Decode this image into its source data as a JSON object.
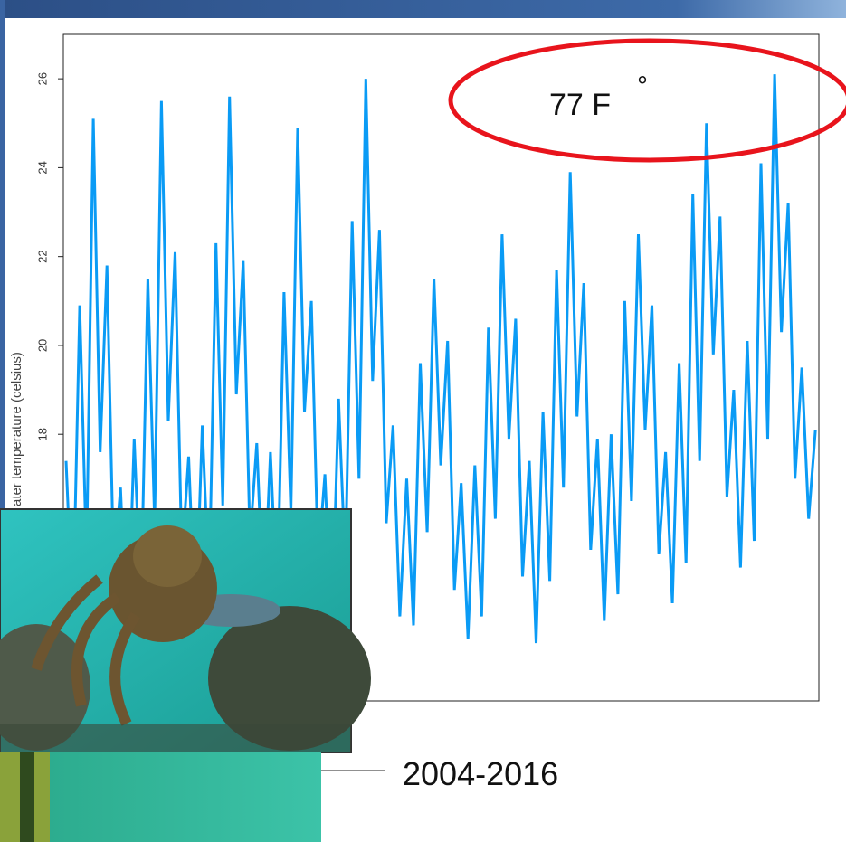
{
  "chart_data": {
    "type": "line",
    "y_label": "ater temperature (celsius)",
    "annotations": [
      "77  F",
      "°",
      "2004-2016"
    ],
    "color": "#0a9bf5",
    "xlim": [
      2004.16,
      2015.25
    ],
    "ylim": [
      12,
      27
    ],
    "yticks": [
      18,
      20,
      22,
      24,
      26
    ],
    "x": [
      2004.2,
      2004.3,
      2004.4,
      2004.5,
      2004.6,
      2004.7,
      2004.8,
      2004.9,
      2005.0,
      2005.1,
      2005.2,
      2005.3,
      2005.4,
      2005.5,
      2005.6,
      2005.7,
      2005.8,
      2005.9,
      2006.0,
      2006.1,
      2006.2,
      2006.3,
      2006.4,
      2006.5,
      2006.6,
      2006.7,
      2006.8,
      2006.9,
      2007.0,
      2007.1,
      2007.2,
      2007.3,
      2007.4,
      2007.5,
      2007.6,
      2007.7,
      2007.8,
      2007.9,
      2008.0,
      2008.1,
      2008.2,
      2008.3,
      2008.4,
      2008.5,
      2008.6,
      2008.7,
      2008.8,
      2008.9,
      2009.0,
      2009.1,
      2009.2,
      2009.3,
      2009.4,
      2009.5,
      2009.6,
      2009.7,
      2009.8,
      2009.9,
      2010.0,
      2010.1,
      2010.2,
      2010.3,
      2010.4,
      2010.5,
      2010.6,
      2010.7,
      2010.8,
      2010.9,
      2011.0,
      2011.1,
      2011.2,
      2011.3,
      2011.4,
      2011.5,
      2011.6,
      2011.7,
      2011.8,
      2011.9,
      2012.0,
      2012.1,
      2012.2,
      2012.3,
      2012.4,
      2012.5,
      2012.6,
      2012.7,
      2012.8,
      2012.9,
      2013.0,
      2013.1,
      2013.2,
      2013.3,
      2013.4,
      2013.5,
      2013.6,
      2013.7,
      2013.8,
      2013.9,
      2014.0,
      2014.1,
      2014.2,
      2014.3,
      2014.4,
      2014.5,
      2014.6,
      2014.7,
      2014.8,
      2014.9,
      2015.0,
      2015.1,
      2015.2
    ],
    "values": [
      17.4,
      13.8,
      20.9,
      15.2,
      25.1,
      17.6,
      21.8,
      14.9,
      16.8,
      13.1,
      17.9,
      14.2,
      21.5,
      16.0,
      25.5,
      18.3,
      22.1,
      15.2,
      17.5,
      13.6,
      18.2,
      14.5,
      22.3,
      16.4,
      25.6,
      18.9,
      21.9,
      15.6,
      17.8,
      14.0,
      17.6,
      14.1,
      21.2,
      16.2,
      24.9,
      18.5,
      21.0,
      15.1,
      17.1,
      13.5,
      18.8,
      15.0,
      22.8,
      17.0,
      26.0,
      19.2,
      22.6,
      16.0,
      18.2,
      13.9,
      17.0,
      13.7,
      19.6,
      15.8,
      21.5,
      17.3,
      20.1,
      14.5,
      16.9,
      13.4,
      17.3,
      13.9,
      20.4,
      16.1,
      22.5,
      17.9,
      20.6,
      14.8,
      17.4,
      13.3,
      18.5,
      14.7,
      21.7,
      16.8,
      23.9,
      18.4,
      21.4,
      15.4,
      17.9,
      13.8,
      18.0,
      14.4,
      21.0,
      16.5,
      22.5,
      18.1,
      20.9,
      15.3,
      17.6,
      14.2,
      19.6,
      15.1,
      23.4,
      17.4,
      25.0,
      19.8,
      22.9,
      16.6,
      19.0,
      15.0,
      20.1,
      15.6,
      24.1,
      17.9,
      26.1,
      20.3,
      23.2,
      17.0,
      19.5,
      16.1,
      18.1
    ]
  }
}
